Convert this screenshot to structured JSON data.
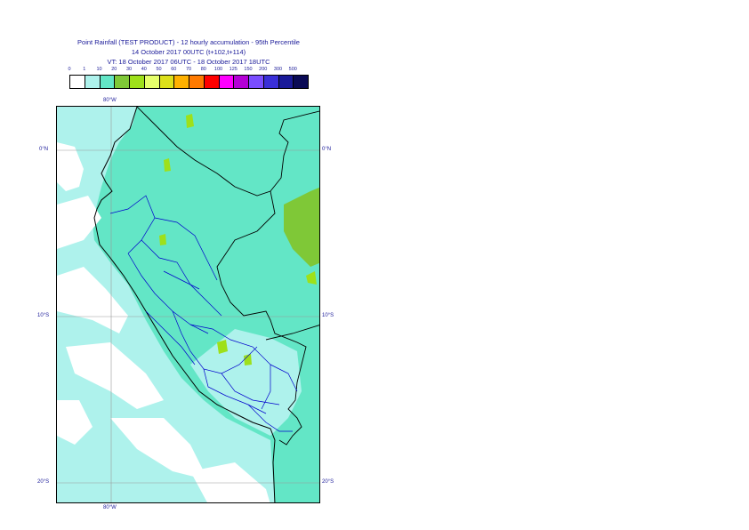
{
  "title": {
    "line1": "Point Rainfall (TEST PRODUCT) - 12 hourly accumulation - 95th Percentile",
    "line2": "14 October 2017 00UTC (t+102,t+114)",
    "line3": "VT: 18 October 2017 06UTC - 18 October 2017 18UTC"
  },
  "legend": [
    {
      "label": "0",
      "color": "#ffffff"
    },
    {
      "label": "1",
      "color": "#aef2ec"
    },
    {
      "label": "10",
      "color": "#63e6c6"
    },
    {
      "label": "20",
      "color": "#7fc837"
    },
    {
      "label": "30",
      "color": "#9ee01a"
    },
    {
      "label": "40",
      "color": "#e6ff6b"
    },
    {
      "label": "50",
      "color": "#dde01a"
    },
    {
      "label": "60",
      "color": "#ffb100"
    },
    {
      "label": "70",
      "color": "#ff7a00"
    },
    {
      "label": "80",
      "color": "#ff0000"
    },
    {
      "label": "100",
      "color": "#ff00ff"
    },
    {
      "label": "125",
      "color": "#b400d6"
    },
    {
      "label": "150",
      "color": "#7a4dff"
    },
    {
      "label": "200",
      "color": "#3a2fd8"
    },
    {
      "label": "300",
      "color": "#1a1a99"
    },
    {
      "label": "500",
      "color": "#0a0a55"
    }
  ],
  "axes": {
    "lon_top": "80°W",
    "lon_bottom": "80°W",
    "lat_left": [
      "0°N",
      "10°S",
      "20°S"
    ],
    "lat_right": [
      "0°N",
      "10°S",
      "20°S"
    ]
  },
  "colors": {
    "ocean_light": "#aef2ec",
    "land_cyan": "#63e6c6",
    "heavy_green": "#9ee01a",
    "border_black": "#000000",
    "region_blue": "#0000cc",
    "grid": "#999999"
  }
}
